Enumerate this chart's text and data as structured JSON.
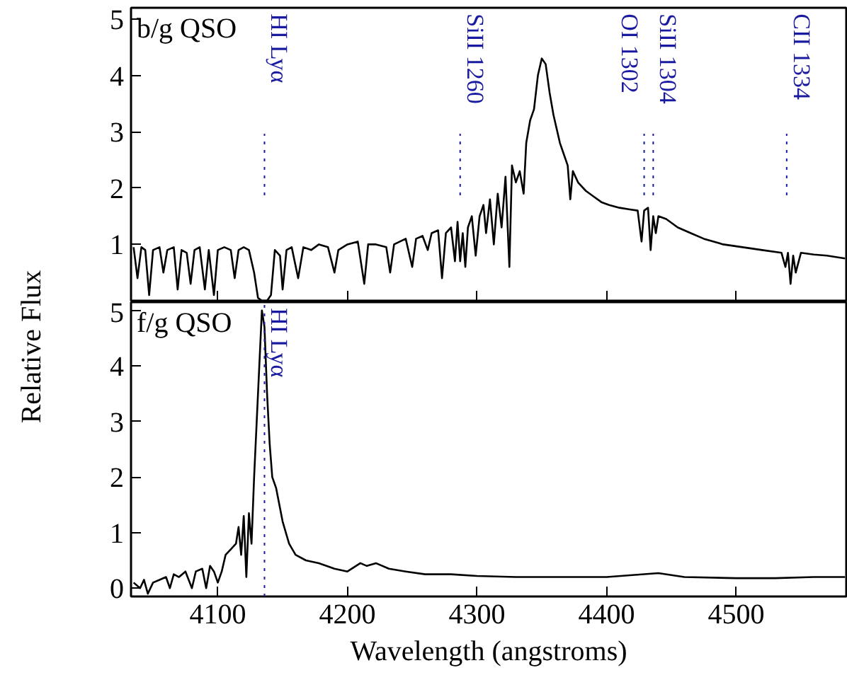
{
  "chart_data": [
    {
      "type": "line",
      "title": "b/g QSO",
      "ylabel": "Relative Flux",
      "tick_labels": "y",
      "grid": false,
      "marker": "none",
      "line_style": "solid",
      "xlim": [
        4033,
        4585
      ],
      "ylim": [
        0,
        5.2
      ],
      "xticks": [
        4100,
        4200,
        4300,
        4400,
        4500
      ],
      "yticks": [
        1,
        2,
        3,
        4,
        5
      ],
      "ref_lines": [
        {
          "axis": "x",
          "value": 4136,
          "label": "HI Lyα",
          "color": "#1a1aa0",
          "line_style": "dotted"
        },
        {
          "axis": "x",
          "value": 4287,
          "label": "SiII 1260",
          "color": "#1a1aa0",
          "line_style": "dotted"
        },
        {
          "axis": "x",
          "value": 4429,
          "label": "OI 1302",
          "color": "#1a1aa0",
          "line_style": "dotted"
        },
        {
          "axis": "x",
          "value": 4436,
          "label": "SiII 1304",
          "color": "#1a1aa0",
          "line_style": "dotted"
        },
        {
          "axis": "x",
          "value": 4539,
          "label": "CII 1334",
          "color": "#1a1aa0",
          "line_style": "dotted"
        }
      ],
      "series": [
        {
          "color": "#000000",
          "x": [
            4035,
            4038,
            4041,
            4044,
            4047,
            4050,
            4055,
            4058,
            4061,
            4066,
            4069,
            4072,
            4076,
            4079,
            4082,
            4086,
            4090,
            4093,
            4097,
            4100,
            4105,
            4110,
            4113,
            4116,
            4120,
            4124,
            4128,
            4131,
            4134,
            4138,
            4141,
            4144,
            4148,
            4150,
            4153,
            4157,
            4162,
            4166,
            4172,
            4178,
            4185,
            4190,
            4193,
            4200,
            4208,
            4213,
            4216,
            4222,
            4230,
            4233,
            4236,
            4245,
            4250,
            4253,
            4258,
            4262,
            4265,
            4270,
            4273,
            4276,
            4280,
            4283,
            4285,
            4287,
            4289,
            4291,
            4293,
            4296,
            4299,
            4302,
            4305,
            4307,
            4310,
            4313,
            4316,
            4319,
            4322,
            4325,
            4327,
            4330,
            4333,
            4336,
            4338,
            4341,
            4344,
            4347,
            4350,
            4353,
            4356,
            4359,
            4362,
            4364,
            4367,
            4370,
            4372,
            4374,
            4378,
            4384,
            4390,
            4396,
            4402,
            4410,
            4418,
            4424,
            4427,
            4429,
            4432,
            4434,
            4436,
            4438,
            4440,
            4446,
            4455,
            4465,
            4475,
            4490,
            4505,
            4520,
            4535,
            4538,
            4540,
            4542,
            4544,
            4546,
            4550,
            4560,
            4570,
            4584
          ],
          "values": [
            0.95,
            0.4,
            0.95,
            0.9,
            0.1,
            0.9,
            0.95,
            0.5,
            0.9,
            0.95,
            0.2,
            0.9,
            0.85,
            0.3,
            0.9,
            0.95,
            0.2,
            0.9,
            0.1,
            0.9,
            0.95,
            0.9,
            0.4,
            0.9,
            0.95,
            0.9,
            0.5,
            0.05,
            0.0,
            0.0,
            0.1,
            0.9,
            0.8,
            0.2,
            0.9,
            0.95,
            0.4,
            0.95,
            0.9,
            1.0,
            0.95,
            0.5,
            0.9,
            1.0,
            1.05,
            0.3,
            1.0,
            1.0,
            0.95,
            0.5,
            1.0,
            1.1,
            0.6,
            1.1,
            1.15,
            0.9,
            1.2,
            1.25,
            0.4,
            1.2,
            1.3,
            0.7,
            1.4,
            0.7,
            1.2,
            0.6,
            1.3,
            1.5,
            0.8,
            1.5,
            1.7,
            1.2,
            1.8,
            1.0,
            1.9,
            1.3,
            2.2,
            0.6,
            2.4,
            2.1,
            2.3,
            1.9,
            2.8,
            3.2,
            3.4,
            4.0,
            4.3,
            4.2,
            3.7,
            3.3,
            3.0,
            2.8,
            2.6,
            2.4,
            1.8,
            2.3,
            2.1,
            1.95,
            1.85,
            1.75,
            1.7,
            1.65,
            1.62,
            1.6,
            1.05,
            1.6,
            1.65,
            0.9,
            1.5,
            1.2,
            1.5,
            1.45,
            1.3,
            1.2,
            1.1,
            1.0,
            0.95,
            0.9,
            0.85,
            0.6,
            0.85,
            0.3,
            0.8,
            0.5,
            0.85,
            0.82,
            0.8,
            0.75
          ]
        }
      ]
    },
    {
      "type": "line",
      "title": "f/g QSO",
      "xlabel": "Wavelength (angstroms)",
      "grid": false,
      "marker": "none",
      "line_style": "solid",
      "xlim": [
        4033,
        4585
      ],
      "ylim": [
        -0.15,
        5.15
      ],
      "xticks": [
        4100,
        4200,
        4300,
        4400,
        4500
      ],
      "yticks": [
        0,
        1,
        2,
        3,
        4,
        5
      ],
      "ref_lines": [
        {
          "axis": "x",
          "value": 4136,
          "label": "HI Lyα",
          "color": "#1a1aa0",
          "line_style": "dotted"
        }
      ],
      "series": [
        {
          "color": "#000000",
          "x": [
            4035,
            4040,
            4043,
            4046,
            4050,
            4055,
            4060,
            4063,
            4066,
            4070,
            4075,
            4080,
            4083,
            4088,
            4091,
            4094,
            4097,
            4100,
            4103,
            4106,
            4110,
            4114,
            4116,
            4118,
            4120,
            4122,
            4124,
            4126,
            4128,
            4130,
            4132,
            4134,
            4136,
            4138,
            4140,
            4142,
            4145,
            4150,
            4155,
            4160,
            4168,
            4178,
            4190,
            4200,
            4210,
            4215,
            4222,
            4232,
            4245,
            4260,
            4280,
            4300,
            4330,
            4360,
            4400,
            4440,
            4460,
            4500,
            4530,
            4560,
            4584
          ],
          "values": [
            0.1,
            0.0,
            0.15,
            -0.1,
            0.1,
            0.15,
            0.2,
            0.0,
            0.25,
            0.2,
            0.3,
            0.0,
            0.3,
            0.35,
            0.0,
            0.4,
            0.3,
            0.1,
            0.3,
            0.6,
            0.7,
            0.8,
            1.1,
            0.6,
            1.3,
            0.2,
            1.35,
            0.8,
            2.0,
            3.0,
            4.0,
            5.0,
            4.7,
            3.5,
            2.6,
            2.0,
            1.8,
            1.2,
            0.8,
            0.6,
            0.5,
            0.45,
            0.35,
            0.3,
            0.45,
            0.4,
            0.45,
            0.35,
            0.3,
            0.25,
            0.25,
            0.22,
            0.2,
            0.2,
            0.2,
            0.27,
            0.2,
            0.18,
            0.18,
            0.2,
            0.2
          ]
        }
      ]
    }
  ]
}
